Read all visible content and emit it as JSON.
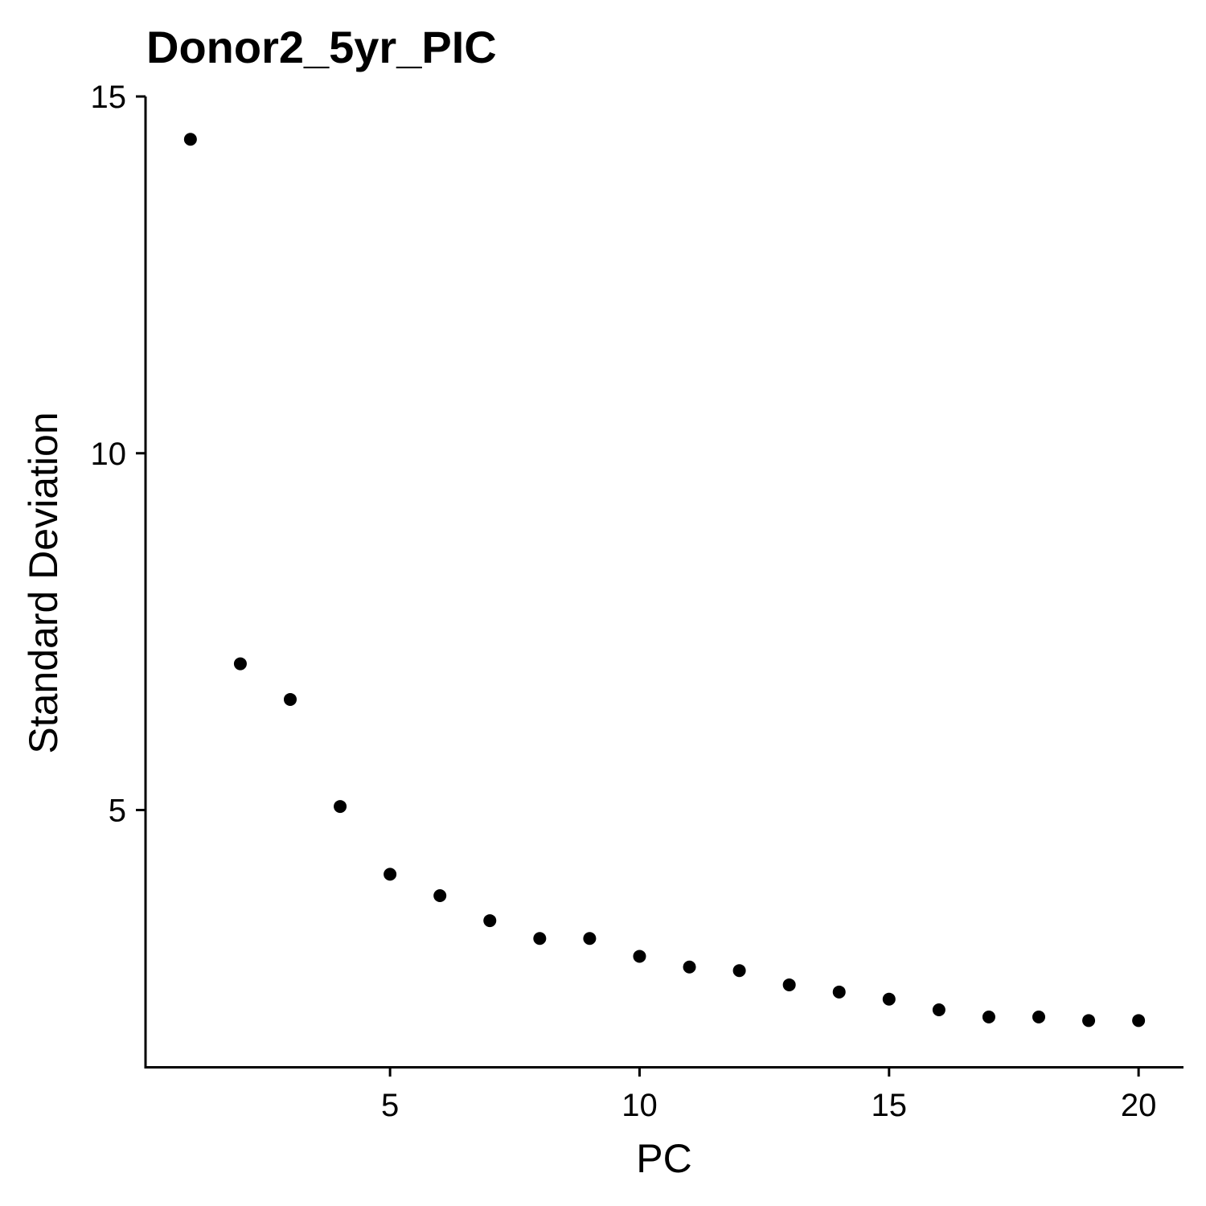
{
  "chart_data": {
    "type": "scatter",
    "title": "Donor2_5yr_PIC",
    "xlabel": "PC",
    "ylabel": "Standard Deviation",
    "xlim": [
      0.1,
      20.9
    ],
    "ylim": [
      1.4,
      15.0
    ],
    "x_ticks": [
      5,
      10,
      15,
      20
    ],
    "y_ticks": [
      5,
      10,
      15
    ],
    "grid": false,
    "legend": "none",
    "point_color": "#000000",
    "axis_color": "#000000",
    "x": [
      1,
      2,
      3,
      4,
      5,
      6,
      7,
      8,
      9,
      10,
      11,
      12,
      13,
      14,
      15,
      16,
      17,
      18,
      19,
      20
    ],
    "y": [
      14.4,
      7.05,
      6.55,
      5.05,
      4.1,
      3.8,
      3.45,
      3.2,
      3.2,
      2.95,
      2.8,
      2.75,
      2.55,
      2.45,
      2.35,
      2.2,
      2.1,
      2.1,
      2.05,
      2.05
    ]
  }
}
